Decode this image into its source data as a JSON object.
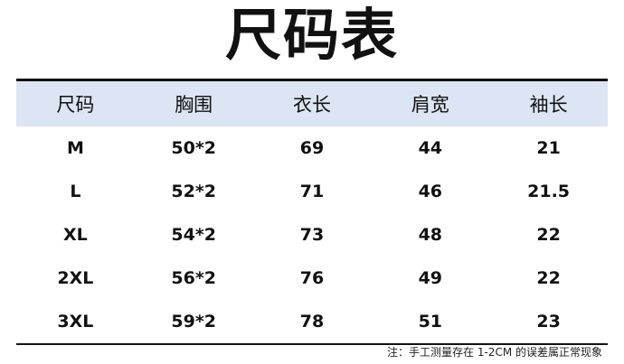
{
  "title": "尺码表",
  "table": {
    "headers": [
      "尺码",
      "胸围",
      "衣长",
      "肩宽",
      "袖长"
    ],
    "rows": [
      [
        "M",
        "50*2",
        "69",
        "44",
        "21"
      ],
      [
        "L",
        "52*2",
        "71",
        "46",
        "21.5"
      ],
      [
        "XL",
        "54*2",
        "73",
        "48",
        "22"
      ],
      [
        "2XL",
        "56*2",
        "76",
        "49",
        "22"
      ],
      [
        "3XL",
        "59*2",
        "78",
        "51",
        "23"
      ]
    ]
  },
  "note": "注：手工测量存在 1-2CM 的误差属正常现象",
  "colors": {
    "header_bg": "#dbe5f3"
  }
}
